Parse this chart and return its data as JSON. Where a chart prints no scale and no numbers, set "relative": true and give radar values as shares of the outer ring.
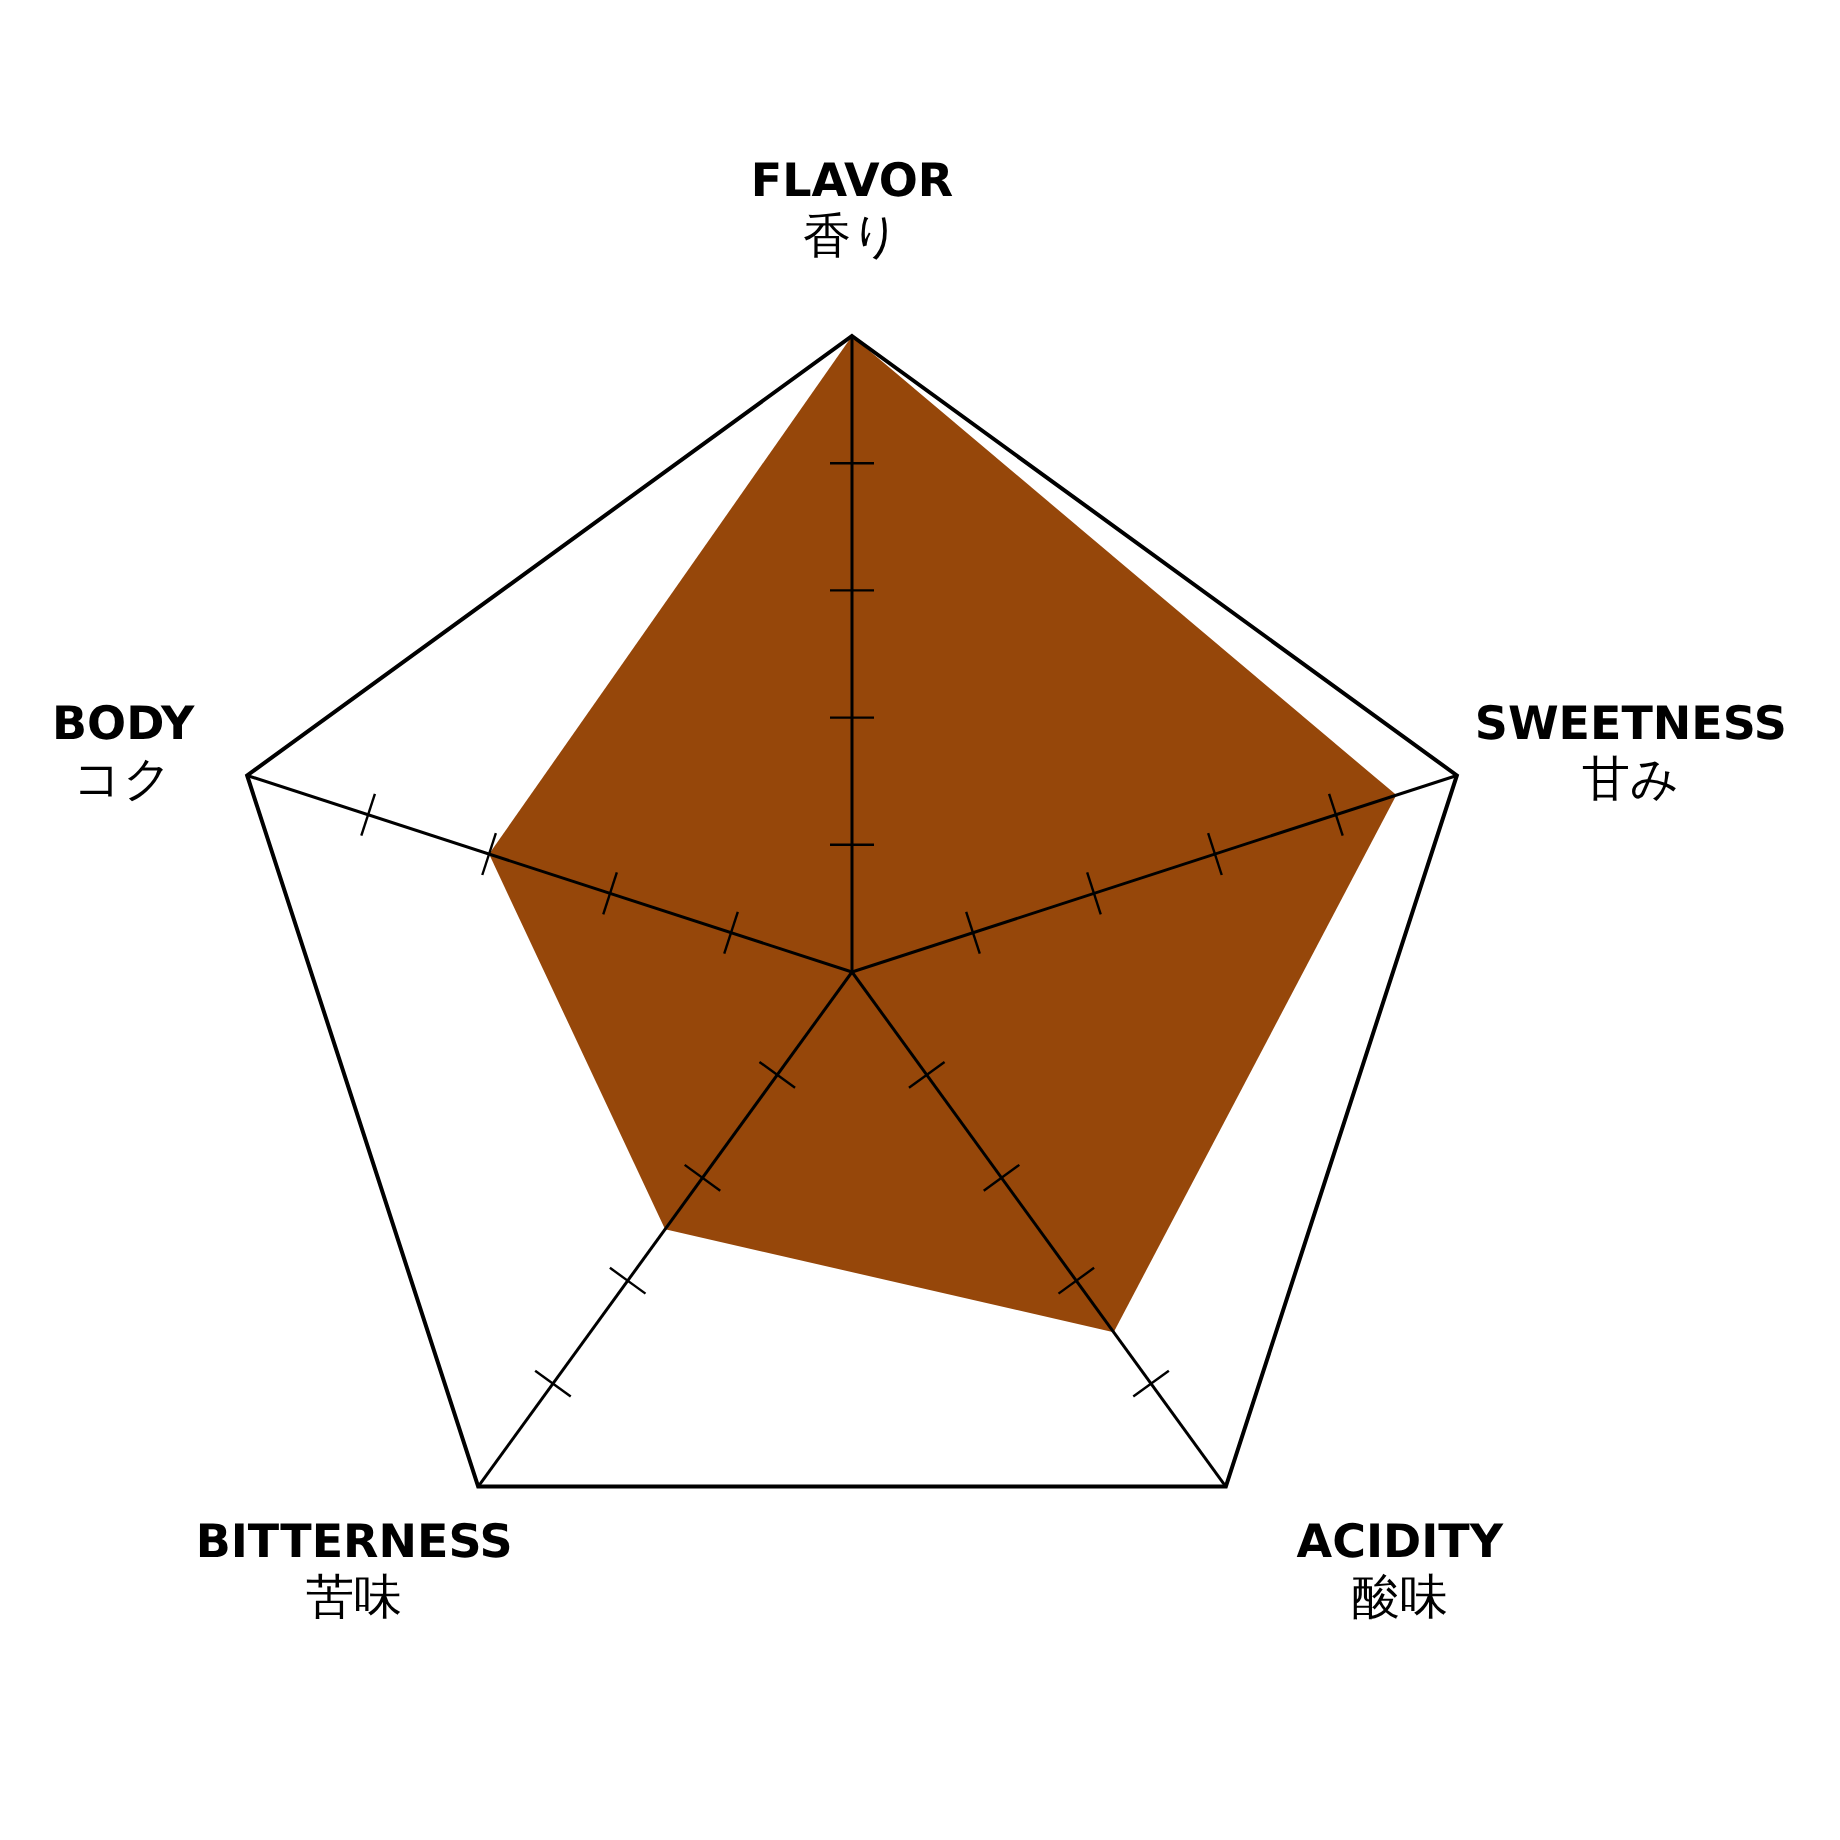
{
  "chart_data": {
    "type": "radar",
    "categories": [
      "FLAVOR\n香り",
      "SWEETNESS\n甘み",
      "ACIDITY\n酸味",
      "BITTERNESS\n苦味",
      "BODY\nコク"
    ],
    "relative": true,
    "series": [
      {
        "color": "#96470a",
        "values": [
          1.0,
          0.9,
          0.7,
          0.5,
          0.6
        ]
      }
    ]
  }
}
